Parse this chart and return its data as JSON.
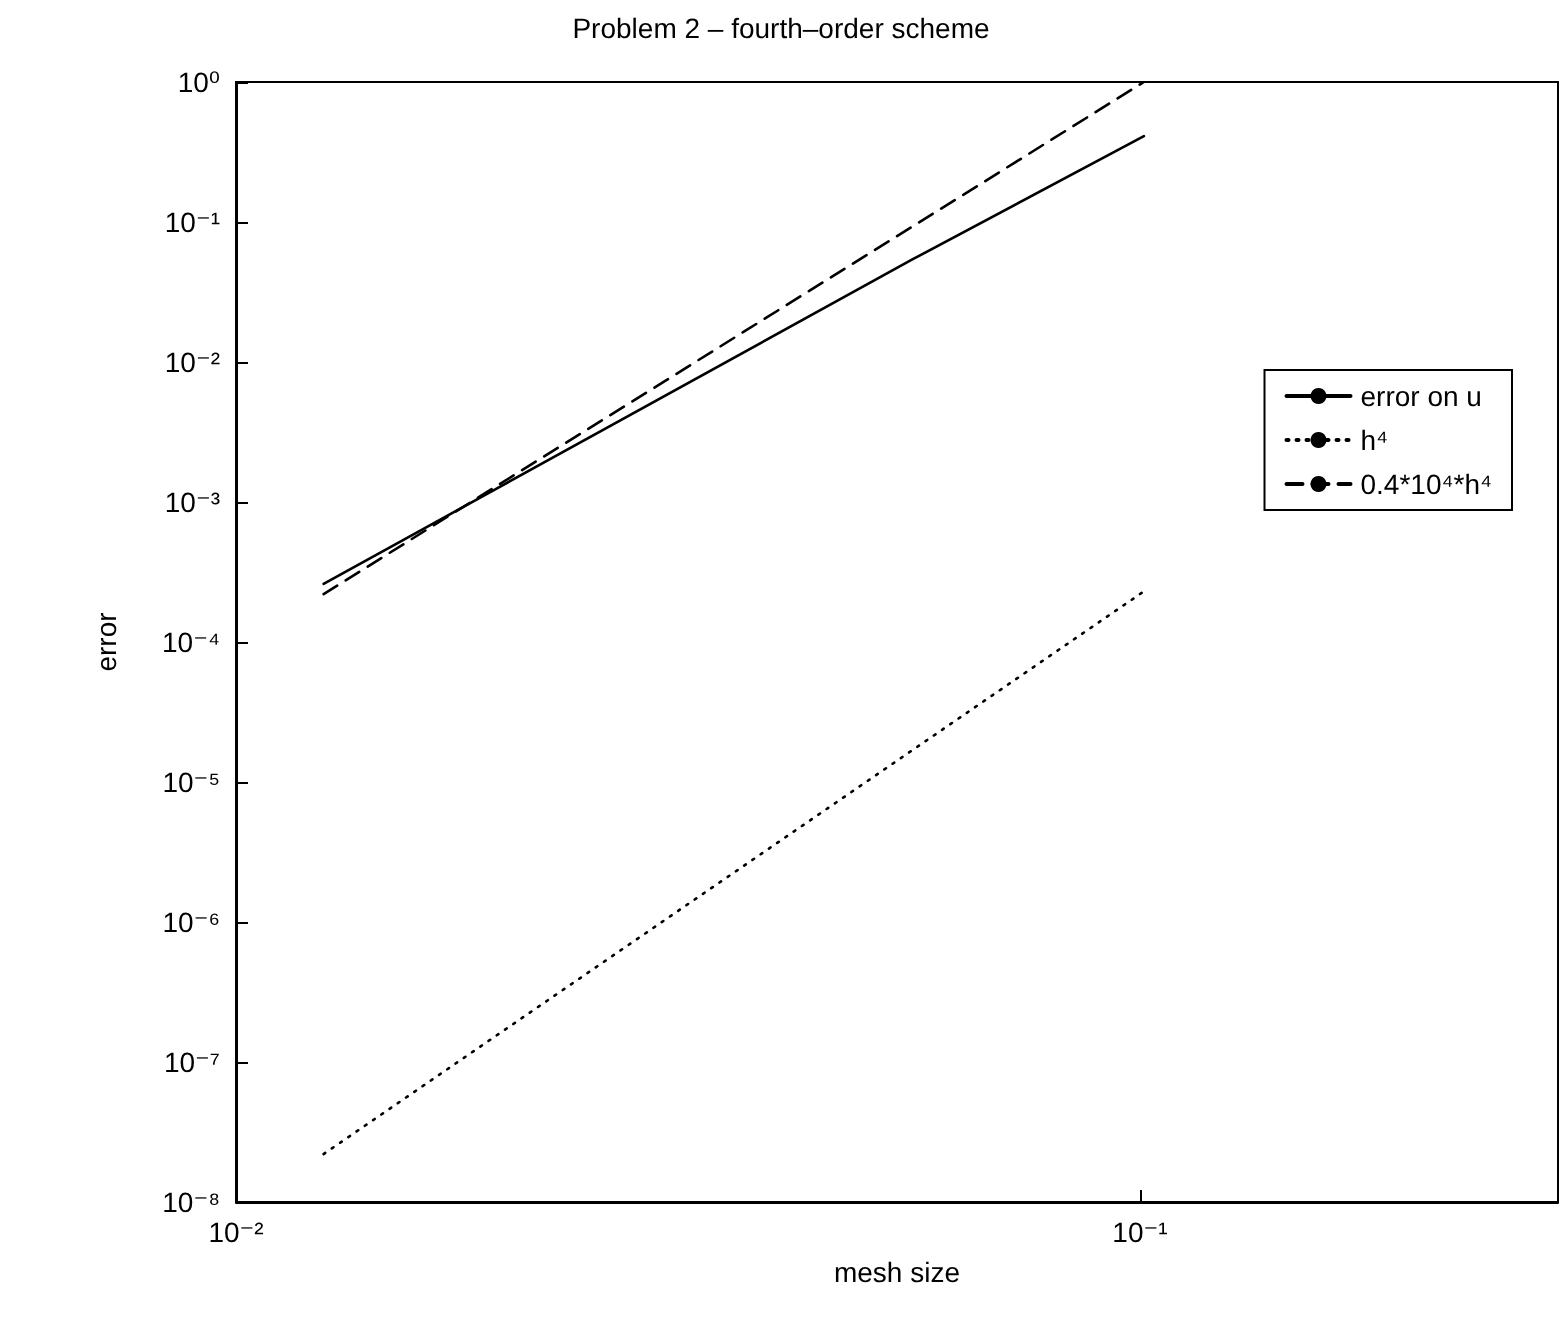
{
  "chart_data": {
    "type": "line",
    "title": "Problem 2 – fourth–order scheme",
    "xlabel": "mesh size",
    "ylabel": "error",
    "log": "xy",
    "grid": false,
    "legend": "right",
    "marker": "none",
    "xlim": [
      0.01,
      0.29
    ],
    "xticks": [
      {
        "value": 0.01,
        "label": "10⁻²"
      },
      {
        "value": 0.1,
        "label": "10⁻¹"
      }
    ],
    "ylim": [
      1e-08,
      1
    ],
    "yticks": [
      {
        "value": 1e-08,
        "label": "10⁻⁸"
      },
      {
        "value": 1e-07,
        "label": "10⁻⁷"
      },
      {
        "value": 1e-06,
        "label": "10⁻⁶"
      },
      {
        "value": 1e-05,
        "label": "10⁻⁵"
      },
      {
        "value": 0.0001,
        "label": "10⁻⁴"
      },
      {
        "value": 0.001,
        "label": "10⁻³"
      },
      {
        "value": 0.01,
        "label": "10⁻²"
      },
      {
        "value": 0.1,
        "label": "10⁻¹"
      },
      {
        "value": 1,
        "label": "10⁰"
      }
    ],
    "series": [
      {
        "name": "error on u",
        "color": "#000000",
        "line_style": "solid",
        "x": [
          0.0125,
          0.056,
          0.101
        ],
        "values": [
          0.00026,
          0.054,
          0.41
        ]
      },
      {
        "name": "h⁴",
        "color": "#000000",
        "line_style": "dotted",
        "x": [
          0.0125,
          0.101
        ],
        "values": [
          2.2e-08,
          0.00023
        ]
      },
      {
        "name": "0.4*10⁴*h⁴",
        "color": "#000000",
        "line_style": "dashed",
        "x": [
          0.0125,
          0.101
        ],
        "values": [
          0.00022,
          1.0
        ]
      }
    ]
  }
}
